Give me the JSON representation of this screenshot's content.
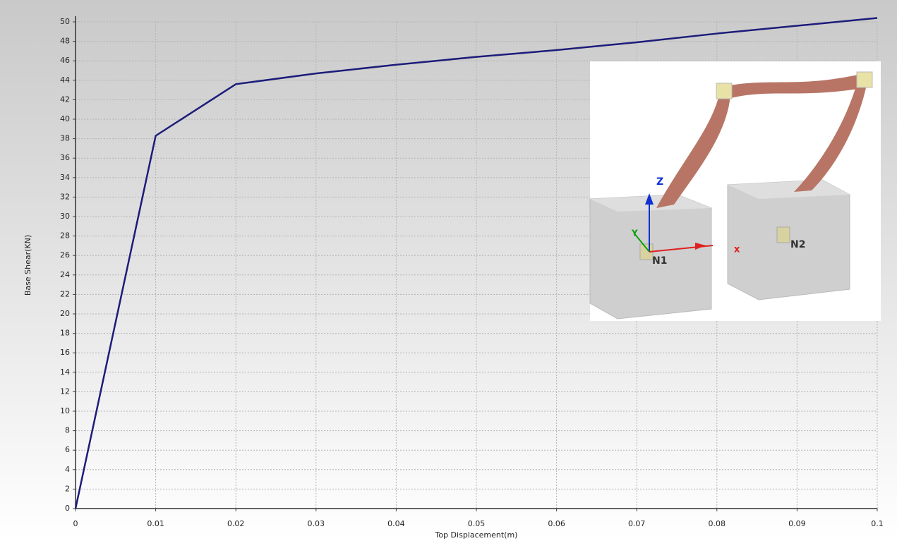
{
  "chart_data": {
    "type": "line",
    "x_label": "Top Displacement(m)",
    "y_label": "Base Shear(KN)",
    "x": [
      0,
      0.01,
      0.02,
      0.03,
      0.04,
      0.05,
      0.06,
      0.07,
      0.08,
      0.09,
      0.1
    ],
    "series": [
      {
        "color": "#1c1c7a",
        "values": [
          0,
          38.3,
          43.6,
          44.7,
          45.6,
          46.4,
          47.1,
          47.9,
          48.8,
          49.6,
          50.4
        ]
      }
    ],
    "xlim": [
      0,
      0.1
    ],
    "xticks": [
      0,
      0.01,
      0.02,
      0.03,
      0.04,
      0.05,
      0.06,
      0.07,
      0.08,
      0.09,
      0.1
    ],
    "ylim": [
      0,
      50
    ],
    "yticks": [
      0,
      2,
      4,
      6,
      8,
      10,
      12,
      14,
      16,
      18,
      20,
      22,
      24,
      26,
      28,
      30,
      32,
      34,
      36,
      38,
      40,
      42,
      44,
      46,
      48,
      50
    ],
    "grid": true,
    "inset_labels": [
      "Z",
      "Y",
      "x",
      "N1",
      "N2"
    ]
  }
}
